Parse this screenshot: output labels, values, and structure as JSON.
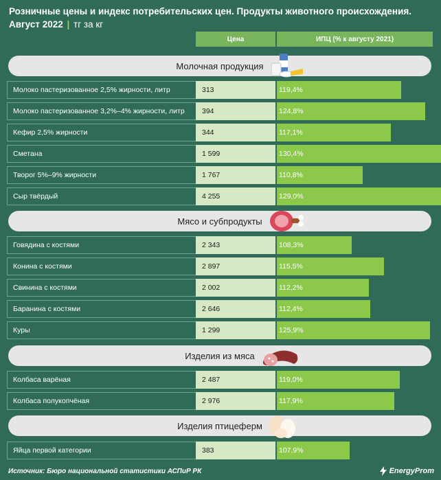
{
  "header": {
    "title_line1": "Розничные цены и индекс потребительских цен. Продукты животного происхождения.",
    "title_date": "Август 2022",
    "title_unit": "тг за кг"
  },
  "columns": {
    "price": "Цена",
    "cpi": "ИПЦ (% к августу 2021)"
  },
  "colors": {
    "background": "#2f6b57",
    "header_bar": "#78b45c",
    "price_cell": "#d6e8c4",
    "cpi_bar": "#8cc84a",
    "section_bar": "#e6e6e6"
  },
  "sections": [
    {
      "title": "Молочная продукция",
      "icon": "dairy-icon"
    },
    {
      "title": "Мясо и субпродукты",
      "icon": "meat-icon"
    },
    {
      "title": "Изделия из мяса",
      "icon": "sausage-icon"
    },
    {
      "title": "Изделия птицеферм",
      "icon": "eggs-icon"
    }
  ],
  "footer": {
    "source": "Источник: Бюро национальной статистики АСПиР РК",
    "logo": "EnergyProm"
  },
  "chart_data": {
    "type": "bar",
    "title": "Розничные цены и индекс потребительских цен. Продукты животного происхождения. Август 2022",
    "unit": "тг за кг",
    "series": [
      {
        "name": "Цена",
        "values": [
          "313",
          "394",
          "344",
          "1 599",
          "1 767",
          "4 255",
          "2 343",
          "2 897",
          "2 002",
          "2 646",
          "1 299",
          "2 487",
          "2 976",
          "383"
        ]
      },
      {
        "name": "ИПЦ (% к августу 2021)",
        "values": [
          119.4,
          124.8,
          117.1,
          130.4,
          110.8,
          129.0,
          108.3,
          115.5,
          112.2,
          112.4,
          125.9,
          119.0,
          117.9,
          107.9
        ]
      }
    ],
    "rows": [
      {
        "group": "Молочная продукция",
        "name": "Молоко пастеризованное 2,5% жирности, литр",
        "price": "313",
        "cpi": 119.4,
        "cpi_label": "119,4%"
      },
      {
        "group": "Молочная продукция",
        "name": "Молоко пастеризованное 3,2%–4% жирности, литр",
        "price": "394",
        "cpi": 124.8,
        "cpi_label": "124,8%"
      },
      {
        "group": "Молочная продукция",
        "name": "Кефир 2,5% жирности",
        "price": "344",
        "cpi": 117.1,
        "cpi_label": "117,1%"
      },
      {
        "group": "Молочная продукция",
        "name": "Сметана",
        "price": "1 599",
        "cpi": 130.4,
        "cpi_label": "130,4%"
      },
      {
        "group": "Молочная продукция",
        "name": "Творог 5%–9% жирности",
        "price": "1 767",
        "cpi": 110.8,
        "cpi_label": "110,8%"
      },
      {
        "group": "Молочная продукция",
        "name": "Сыр твёрдый",
        "price": "4 255",
        "cpi": 129.0,
        "cpi_label": "129,0%"
      },
      {
        "group": "Мясо и субпродукты",
        "name": "Говядина с костями",
        "price": "2 343",
        "cpi": 108.3,
        "cpi_label": "108,3%"
      },
      {
        "group": "Мясо и субпродукты",
        "name": "Конина с костями",
        "price": "2 897",
        "cpi": 115.5,
        "cpi_label": "115,5%"
      },
      {
        "group": "Мясо и субпродукты",
        "name": "Свинина с костями",
        "price": "2 002",
        "cpi": 112.2,
        "cpi_label": "112,2%"
      },
      {
        "group": "Мясо и субпродукты",
        "name": "Баранина с костями",
        "price": "2 646",
        "cpi": 112.4,
        "cpi_label": "112,4%"
      },
      {
        "group": "Мясо и субпродукты",
        "name": "Куры",
        "price": "1 299",
        "cpi": 125.9,
        "cpi_label": "125,9%"
      },
      {
        "group": "Изделия из мяса",
        "name": "Колбаса варёная",
        "price": "2 487",
        "cpi": 119.0,
        "cpi_label": "119,0%"
      },
      {
        "group": "Изделия из мяса",
        "name": "Колбаса полукопчёная",
        "price": "2 976",
        "cpi": 117.9,
        "cpi_label": "117,9%"
      },
      {
        "group": "Изделия птицеферм",
        "name": "Яйца первой категории",
        "price": "383",
        "cpi": 107.9,
        "cpi_label": "107,9%"
      }
    ]
  }
}
